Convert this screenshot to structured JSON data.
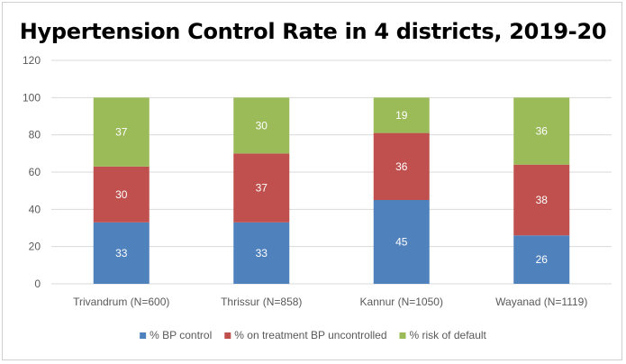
{
  "chart_data": {
    "type": "bar",
    "stacked": true,
    "title": "Hypertension Control Rate in 4 districts, 2019-20",
    "categories": [
      "Trivandrum (N=600)",
      "Thrissur (N=858)",
      "Kannur (N=1050)",
      "Wayanad (N=1119)"
    ],
    "series": [
      {
        "name": "% BP control",
        "color": "#4f81bd",
        "values": [
          33,
          33,
          45,
          26
        ]
      },
      {
        "name": "% on treatment BP uncontrolled",
        "color": "#c0504d",
        "values": [
          30,
          37,
          36,
          38
        ]
      },
      {
        "name": "% risk of default",
        "color": "#9bbb59",
        "values": [
          37,
          30,
          19,
          36
        ]
      }
    ],
    "ylim": [
      0,
      120
    ],
    "yticks": [
      0,
      20,
      40,
      60,
      80,
      100,
      120
    ],
    "grid": true,
    "gridColor": "#d9d9d9",
    "legend": "bottom",
    "xlabel": "",
    "ylabel": ""
  }
}
